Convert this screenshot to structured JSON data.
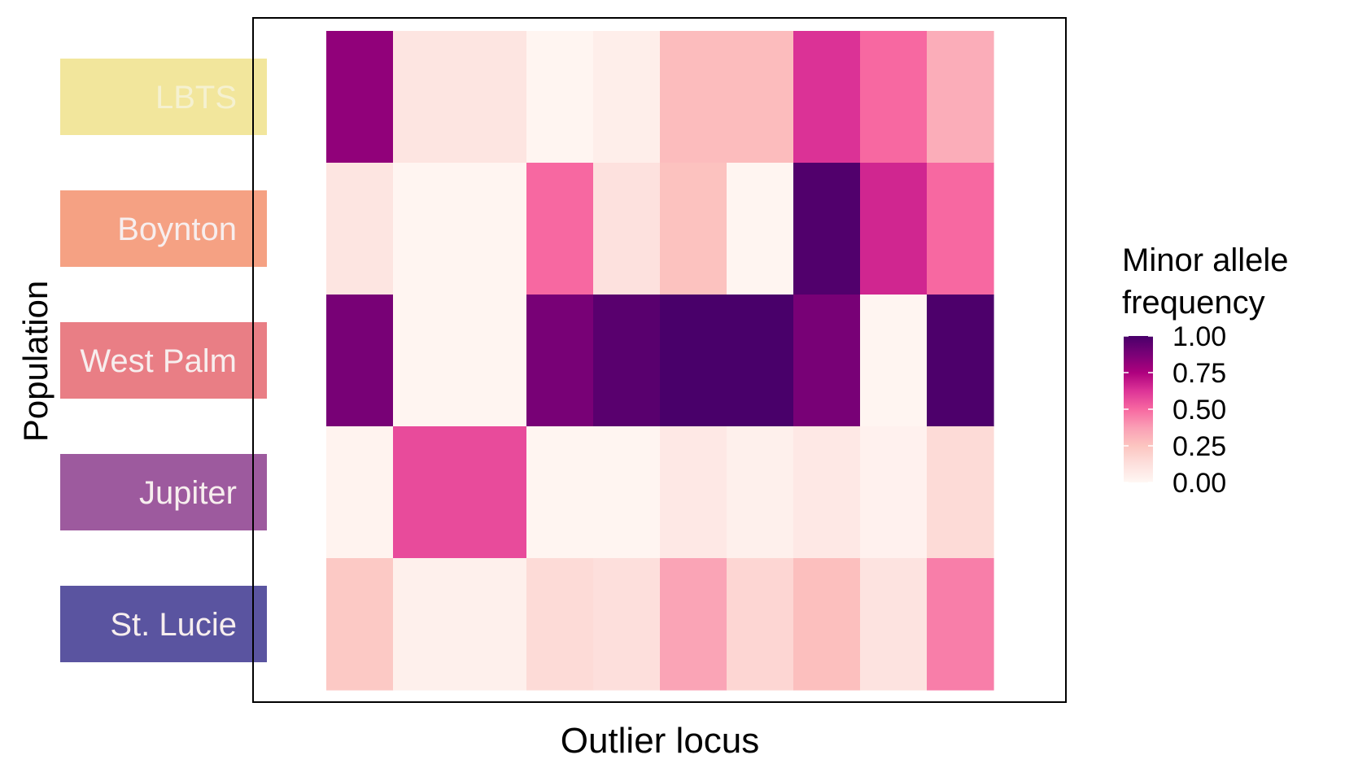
{
  "chart_data": {
    "type": "heatmap",
    "xlabel": "Outlier locus",
    "ylabel": "Population",
    "x_tick_labels_shown": false,
    "grid": false,
    "legend_position": "right",
    "populations": [
      {
        "name": "LBTS",
        "strip_color": "#f2e69c",
        "text_color": "#f5f1d0"
      },
      {
        "name": "Boynton",
        "strip_color": "#f5a183",
        "text_color": "#f7eeee"
      },
      {
        "name": "West Palm",
        "strip_color": "#e97e85",
        "text_color": "#f7eeee"
      },
      {
        "name": "Jupiter",
        "strip_color": "#9d5a9e",
        "text_color": "#f7eeee"
      },
      {
        "name": "St. Lucie",
        "strip_color": "#5a54a0",
        "text_color": "#f7eeee"
      }
    ],
    "loci_count": 10,
    "values": [
      [
        0.82,
        0.1,
        0.1,
        0.01,
        0.05,
        0.28,
        0.28,
        0.63,
        0.5,
        0.33
      ],
      [
        0.1,
        0.01,
        0.01,
        0.5,
        0.12,
        0.26,
        0.01,
        0.98,
        0.66,
        0.5
      ],
      [
        0.88,
        0.01,
        0.01,
        0.88,
        0.96,
        1.0,
        1.0,
        0.88,
        0.01,
        0.99
      ],
      [
        0.02,
        0.57,
        0.57,
        0.01,
        0.01,
        0.08,
        0.04,
        0.08,
        0.03,
        0.15
      ],
      [
        0.23,
        0.04,
        0.04,
        0.15,
        0.13,
        0.36,
        0.17,
        0.27,
        0.11,
        0.45
      ]
    ],
    "legend": {
      "title_lines": [
        "Minor allele",
        "frequency"
      ],
      "ticks": [
        "1.00",
        "0.75",
        "0.50",
        "0.25",
        "0.00"
      ],
      "tick_values": [
        1.0,
        0.75,
        0.5,
        0.25,
        0.0
      ],
      "min": 0,
      "max": 1
    },
    "color_scale": {
      "name": "RdPu",
      "stops": [
        {
          "v": 0.0,
          "color": "#fff7f3"
        },
        {
          "v": 0.125,
          "color": "#fde0dd"
        },
        {
          "v": 0.25,
          "color": "#fcc5c0"
        },
        {
          "v": 0.375,
          "color": "#fa9fb5"
        },
        {
          "v": 0.5,
          "color": "#f768a1"
        },
        {
          "v": 0.625,
          "color": "#dd3497"
        },
        {
          "v": 0.75,
          "color": "#ae017e"
        },
        {
          "v": 0.875,
          "color": "#7a0177"
        },
        {
          "v": 1.0,
          "color": "#49006a"
        }
      ]
    }
  }
}
